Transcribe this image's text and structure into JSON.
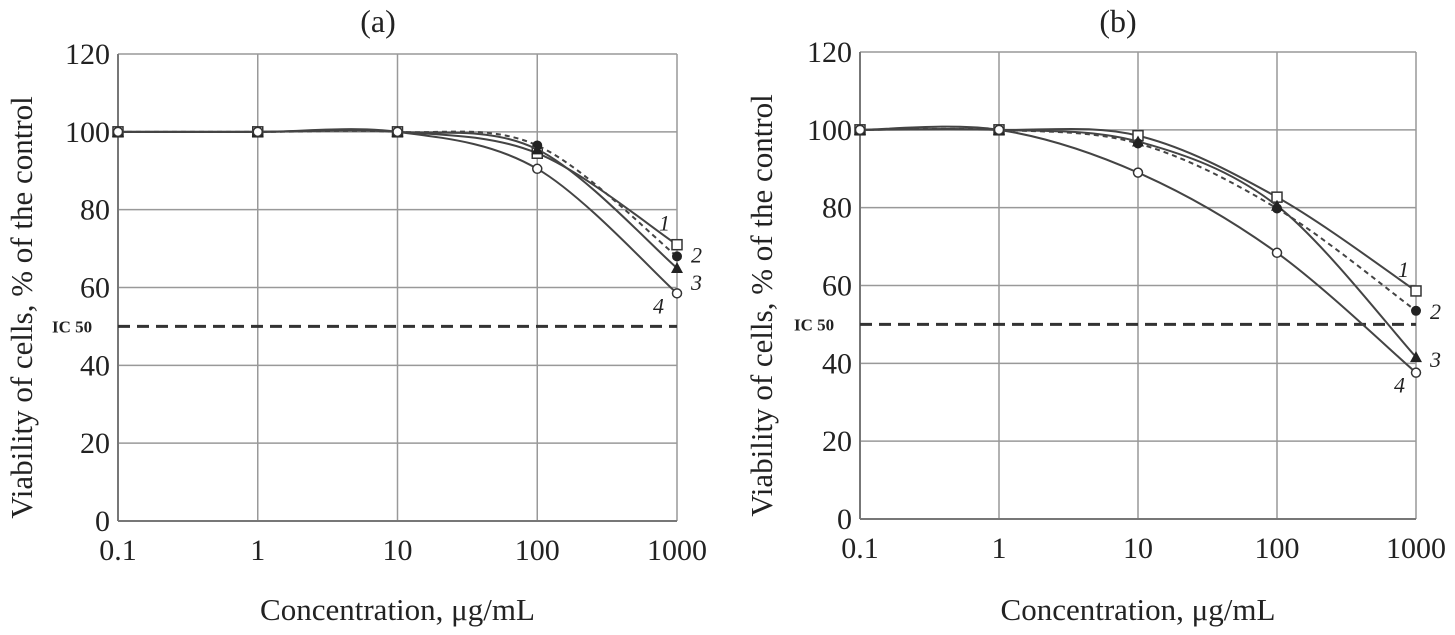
{
  "chart_data": [
    {
      "type": "line",
      "title": "(a)",
      "xlabel": "Concentration, μg/mL",
      "ylabel": "Viability of cells, % of the control",
      "x_scale": "log",
      "xlim": [
        0.1,
        1000
      ],
      "ylim": [
        0,
        120
      ],
      "x_ticks": [
        "0.1",
        "1",
        "10",
        "100",
        "1000"
      ],
      "y_ticks": [
        "0",
        "20",
        "40",
        "60",
        "80",
        "100",
        "120"
      ],
      "grid": true,
      "x": [
        0.1,
        1,
        10,
        100,
        1000
      ],
      "reference_line": {
        "label": "IC 50",
        "y": 50
      },
      "series": [
        {
          "name": "1",
          "marker": "open-square",
          "style": "solid",
          "values": [
            100,
            100,
            100,
            94.5,
            71
          ]
        },
        {
          "name": "2",
          "marker": "filled-circle",
          "style": "dashed",
          "values": [
            100,
            100,
            100,
            96.5,
            68
          ]
        },
        {
          "name": "3",
          "marker": "filled-triangle",
          "style": "solid",
          "values": [
            100,
            100,
            100,
            95.5,
            65
          ]
        },
        {
          "name": "4",
          "marker": "open-circle",
          "style": "solid",
          "values": [
            100,
            100,
            100,
            90.5,
            58.5
          ]
        }
      ]
    },
    {
      "type": "line",
      "title": "(b)",
      "xlabel": "Concentration, μg/mL",
      "ylabel": "Viability of cells, % of the control",
      "x_scale": "log",
      "xlim": [
        0.1,
        1000
      ],
      "ylim": [
        0,
        120
      ],
      "x_ticks": [
        "0.1",
        "1",
        "10",
        "100",
        "1000"
      ],
      "y_ticks": [
        "0",
        "20",
        "40",
        "60",
        "80",
        "100",
        "120"
      ],
      "grid": true,
      "x": [
        0.1,
        1,
        10,
        100,
        1000
      ],
      "reference_line": {
        "label": "IC 50",
        "y": 50
      },
      "series": [
        {
          "name": "1",
          "marker": "open-square",
          "style": "solid",
          "values": [
            100,
            100,
            98.5,
            82.7,
            58.6
          ]
        },
        {
          "name": "2",
          "marker": "filled-circle",
          "style": "dashed",
          "values": [
            100,
            100,
            96.5,
            79.8,
            53.5
          ]
        },
        {
          "name": "3",
          "marker": "filled-triangle",
          "style": "solid",
          "values": [
            100,
            100,
            97,
            80.5,
            41.6
          ]
        },
        {
          "name": "4",
          "marker": "open-circle",
          "style": "solid",
          "values": [
            100,
            100,
            89,
            68.4,
            37.6
          ]
        }
      ]
    }
  ]
}
